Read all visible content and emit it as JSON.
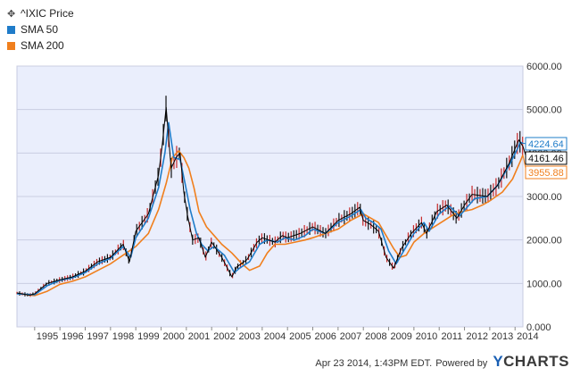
{
  "legend": [
    {
      "label": "^IXIC Price",
      "color": "#000000",
      "icon": "candlestick-icon"
    },
    {
      "label": "SMA 50",
      "color": "#1f7cc9"
    },
    {
      "label": "SMA 200",
      "color": "#f07f1d"
    }
  ],
  "footer": {
    "timestamp": "Apr 23 2014, 1:43PM EDT.",
    "powered_by": "Powered by",
    "brand_prefix": "Y",
    "brand_rest": "CHARTS"
  },
  "chart_data": {
    "type": "line",
    "title": "",
    "xlabel": "",
    "ylabel": "",
    "x_ticks": [
      "1995",
      "1996",
      "1997",
      "1998",
      "1999",
      "2000",
      "2001",
      "2002",
      "2003",
      "2004",
      "2005",
      "2006",
      "2007",
      "2008",
      "2009",
      "2010",
      "2011",
      "2012",
      "2013",
      "2014"
    ],
    "y_ticks": [
      "0.000",
      "1000.00",
      "2000.00",
      "3000.00",
      "4000.00",
      "5000.00",
      "6000.00"
    ],
    "ylim": [
      0,
      6000
    ],
    "xlim": [
      1994.3,
      2014.31
    ],
    "grid": true,
    "legend_position": "top-left",
    "end_labels": [
      {
        "text": "4224.64",
        "series": "SMA 50"
      },
      {
        "text": "4161.46",
        "series": "^IXIC Price"
      },
      {
        "text": "3955.88",
        "series": "SMA 200"
      }
    ],
    "series": [
      {
        "name": "^IXIC Price",
        "color": "#000000",
        "x": [
          1994.3,
          1994.8,
          1995.0,
          1995.5,
          1996.0,
          1996.5,
          1997.0,
          1997.5,
          1998.0,
          1998.5,
          1998.75,
          1999.0,
          1999.5,
          1999.9,
          2000.05,
          2000.2,
          2000.4,
          2000.6,
          2000.75,
          2000.9,
          2001.05,
          2001.25,
          2001.5,
          2001.75,
          2002.0,
          2002.4,
          2002.8,
          2003.0,
          2003.4,
          2003.8,
          2004.0,
          2004.5,
          2004.8,
          2005.0,
          2005.5,
          2006.0,
          2006.5,
          2007.0,
          2007.5,
          2007.85,
          2008.0,
          2008.3,
          2008.6,
          2008.9,
          2009.2,
          2009.5,
          2009.9,
          2010.3,
          2010.5,
          2010.9,
          2011.3,
          2011.7,
          2012.0,
          2012.3,
          2012.9,
          2013.3,
          2013.8,
          2014.0,
          2014.15,
          2014.3
        ],
        "values": [
          780,
          730,
          760,
          1000,
          1080,
          1150,
          1280,
          1500,
          1600,
          1900,
          1500,
          2200,
          2600,
          3500,
          4200,
          5050,
          3650,
          3900,
          4000,
          3100,
          2550,
          2000,
          2050,
          1600,
          1950,
          1600,
          1150,
          1380,
          1550,
          1950,
          2050,
          1950,
          2100,
          2050,
          2150,
          2300,
          2150,
          2450,
          2600,
          2750,
          2450,
          2350,
          2200,
          1600,
          1350,
          1800,
          2150,
          2400,
          2150,
          2650,
          2800,
          2500,
          2800,
          3050,
          3000,
          3250,
          3800,
          4100,
          4300,
          4161.46
        ]
      },
      {
        "name": "SMA 50",
        "color": "#1f7cc9",
        "x": [
          1994.3,
          1995.0,
          1995.5,
          1996.0,
          1996.5,
          1997.0,
          1997.5,
          1998.0,
          1998.5,
          1998.8,
          1999.0,
          1999.5,
          1999.9,
          2000.15,
          2000.3,
          2000.5,
          2000.75,
          2000.95,
          2001.15,
          2001.4,
          2001.6,
          2001.85,
          2002.1,
          2002.5,
          2002.9,
          2003.1,
          2003.5,
          2003.9,
          2004.2,
          2004.6,
          2004.9,
          2005.3,
          2005.7,
          2006.0,
          2006.5,
          2007.0,
          2007.5,
          2007.9,
          2008.1,
          2008.4,
          2008.7,
          2009.0,
          2009.3,
          2009.6,
          2010.0,
          2010.4,
          2010.6,
          2011.0,
          2011.4,
          2011.8,
          2012.1,
          2012.4,
          2012.9,
          2013.3,
          2013.8,
          2014.1,
          2014.2,
          2014.31
        ],
        "values": [
          760,
          740,
          950,
          1070,
          1130,
          1250,
          1450,
          1580,
          1850,
          1600,
          2050,
          2500,
          3200,
          4000,
          4700,
          3900,
          3850,
          3300,
          2700,
          2150,
          1900,
          1750,
          1850,
          1650,
          1250,
          1350,
          1500,
          1900,
          2000,
          1950,
          2050,
          2000,
          2100,
          2250,
          2150,
          2400,
          2550,
          2700,
          2500,
          2400,
          2250,
          1750,
          1450,
          1750,
          2150,
          2400,
          2200,
          2600,
          2780,
          2550,
          2750,
          2950,
          3000,
          3250,
          3750,
          4100,
          4250,
          4224.64
        ]
      },
      {
        "name": "SMA 200",
        "color": "#f07f1d",
        "x": [
          1994.3,
          1995.0,
          1995.5,
          1996.0,
          1996.5,
          1997.0,
          1997.5,
          1998.0,
          1998.5,
          1999.0,
          1999.5,
          1999.9,
          2000.2,
          2000.45,
          2000.7,
          2000.9,
          2001.1,
          2001.3,
          2001.5,
          2001.8,
          2002.1,
          2002.4,
          2002.8,
          2003.2,
          2003.5,
          2003.9,
          2004.2,
          2004.5,
          2004.9,
          2005.3,
          2005.7,
          2006.0,
          2006.5,
          2007.0,
          2007.5,
          2008.0,
          2008.3,
          2008.6,
          2008.9,
          2009.2,
          2009.45,
          2009.7,
          2010.0,
          2010.4,
          2010.8,
          2011.2,
          2011.6,
          2011.9,
          2012.3,
          2012.7,
          2013.0,
          2013.5,
          2013.9,
          2014.2,
          2014.31
        ],
        "values": [
          770,
          720,
          820,
          980,
          1050,
          1150,
          1300,
          1450,
          1650,
          1850,
          2150,
          2700,
          3300,
          3900,
          4050,
          3900,
          3650,
          3200,
          2650,
          2300,
          2100,
          1900,
          1700,
          1450,
          1300,
          1400,
          1700,
          1900,
          1900,
          1950,
          2000,
          2050,
          2150,
          2250,
          2450,
          2600,
          2500,
          2400,
          2100,
          1800,
          1600,
          1650,
          1950,
          2150,
          2300,
          2450,
          2600,
          2650,
          2700,
          2800,
          2900,
          3100,
          3400,
          3800,
          3955.88
        ]
      }
    ]
  }
}
